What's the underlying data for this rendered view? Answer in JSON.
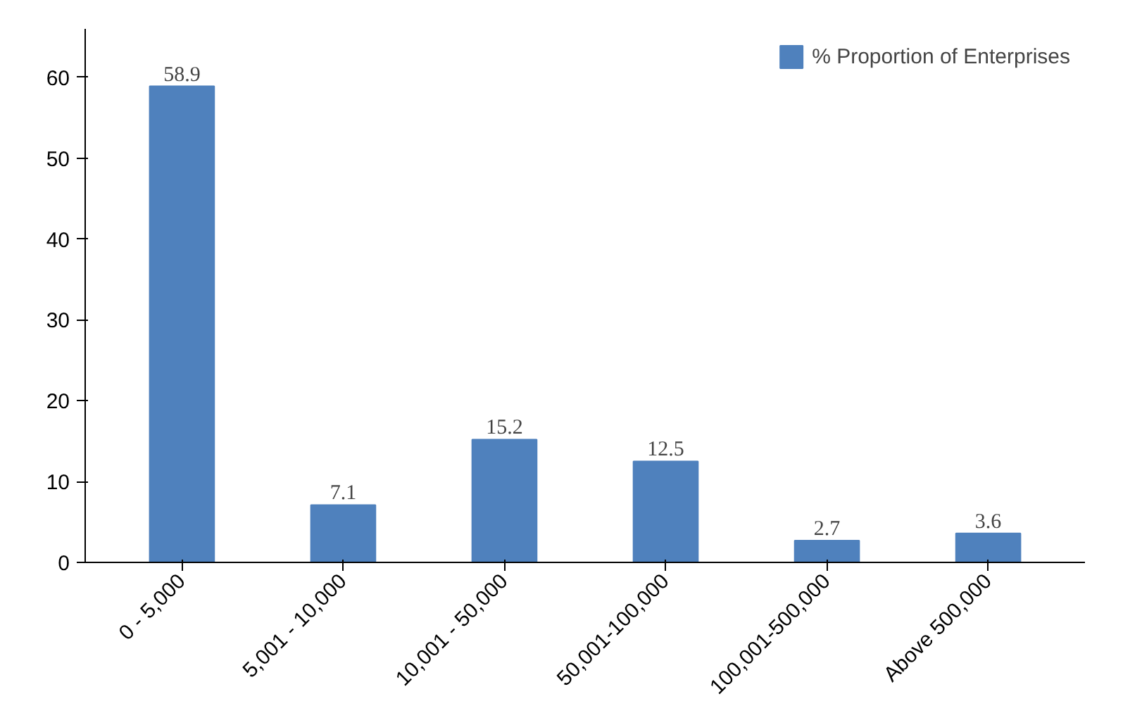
{
  "chart_data": {
    "type": "bar",
    "categories": [
      "0 - 5,000",
      "5,001 - 10,000",
      "10,001 - 50,000",
      "50,001-100,000",
      "100,001-500,000",
      "Above 500,000"
    ],
    "series": [
      {
        "name": "% Proportion of Enterprises",
        "color": "#4f81bd",
        "values": [
          58.9,
          7.1,
          15.2,
          12.5,
          2.7,
          3.6
        ]
      }
    ],
    "ylim": [
      0,
      66
    ],
    "yticks": [
      0,
      10,
      20,
      30,
      40,
      50,
      60
    ],
    "data_labels": true,
    "legend": "top right",
    "grid": false
  }
}
